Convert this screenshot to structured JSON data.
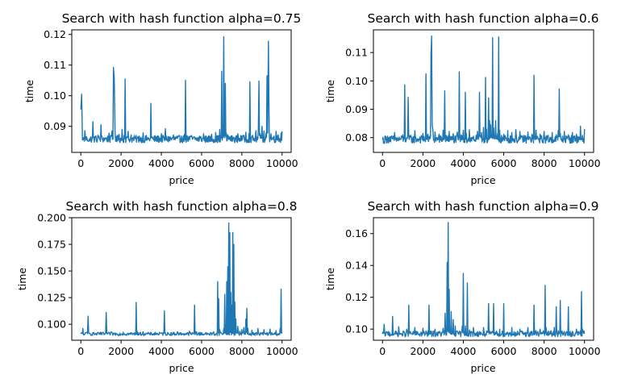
{
  "figure": {
    "background": "#ffffff",
    "series_color": "#1f77b4"
  },
  "chart_data": [
    {
      "type": "line",
      "title": "Search with hash function alpha=0.75",
      "xlabel": "price",
      "ylabel": "time",
      "xlim": [
        -450,
        10450
      ],
      "ylim": [
        0.0815,
        0.1215
      ],
      "xticks": [
        0,
        2000,
        4000,
        6000,
        8000,
        10000
      ],
      "xtick_labels": [
        "0",
        "2000",
        "4000",
        "6000",
        "8000",
        "10000"
      ],
      "yticks": [
        0.09,
        0.1,
        0.11,
        0.12
      ],
      "ytick_labels": [
        "0.09",
        "0.10",
        "0.11",
        "0.12"
      ],
      "grid": false,
      "series": [
        {
          "baseline": 0.0855,
          "noise": 0.0012,
          "x": [
            0,
            40,
            80,
            120,
            200,
            300,
            450,
            600,
            720,
            850,
            1000,
            1200,
            1400,
            1550,
            1620,
            1660,
            1700,
            1760,
            1900,
            2050,
            2150,
            2200,
            2260,
            2350,
            2500,
            2700,
            2900,
            3100,
            3300,
            3480,
            3530,
            3600,
            3800,
            4000,
            4200,
            4400,
            4600,
            4800,
            5000,
            5150,
            5200,
            5260,
            5350,
            5500,
            5700,
            5900,
            6100,
            6300,
            6500,
            6700,
            6900,
            7000,
            7050,
            7100,
            7130,
            7180,
            7230,
            7300,
            7400,
            7600,
            7800,
            7950,
            8050,
            8200,
            8350,
            8400,
            8500,
            8700,
            8820,
            8850,
            8900,
            8950,
            9000,
            9100,
            9200,
            9250,
            9280,
            9320,
            9360,
            9450,
            9600,
            9700,
            9800,
            9900,
            9950,
            10000
          ],
          "y": [
            0.0955,
            0.1005,
            0.0855,
            0.0858,
            0.0886,
            0.0862,
            0.0852,
            0.0915,
            0.0864,
            0.0871,
            0.0905,
            0.0862,
            0.0878,
            0.0885,
            0.1092,
            0.106,
            0.0882,
            0.0866,
            0.0874,
            0.089,
            0.087,
            0.1055,
            0.0862,
            0.0884,
            0.0872,
            0.086,
            0.0868,
            0.0879,
            0.0862,
            0.0975,
            0.0866,
            0.0858,
            0.0868,
            0.0876,
            0.0892,
            0.0866,
            0.0872,
            0.0861,
            0.0868,
            0.0874,
            0.105,
            0.0862,
            0.0864,
            0.087,
            0.0862,
            0.0868,
            0.0876,
            0.0865,
            0.0874,
            0.088,
            0.089,
            0.108,
            0.0885,
            0.1192,
            0.087,
            0.104,
            0.0878,
            0.0872,
            0.0866,
            0.0864,
            0.0876,
            0.087,
            0.087,
            0.0881,
            0.0876,
            0.1045,
            0.0868,
            0.0886,
            0.0892,
            0.1048,
            0.0876,
            0.087,
            0.09,
            0.0885,
            0.0878,
            0.1065,
            0.0878,
            0.1178,
            0.0883,
            0.0876,
            0.0868,
            0.0884,
            0.0872,
            0.086,
            0.0878,
            0.0884
          ]
        }
      ]
    },
    {
      "type": "line",
      "title": "Search with hash function alpha=0.6",
      "xlabel": "price",
      "ylabel": "time",
      "xlim": [
        -450,
        10450
      ],
      "ylim": [
        0.0748,
        0.118
      ],
      "xticks": [
        0,
        2000,
        4000,
        6000,
        8000,
        10000
      ],
      "xtick_labels": [
        "0",
        "2000",
        "4000",
        "6000",
        "8000",
        "10000"
      ],
      "yticks": [
        0.08,
        0.09,
        0.1,
        0.11
      ],
      "ytick_labels": [
        "0.08",
        "0.09",
        "0.10",
        "0.11"
      ],
      "grid": false,
      "series": [
        {
          "baseline": 0.079,
          "noise": 0.0014,
          "x": [
            0,
            100,
            250,
            400,
            600,
            800,
            1000,
            1100,
            1200,
            1270,
            1400,
            1600,
            1850,
            2000,
            2150,
            2250,
            2400,
            2430,
            2460,
            2500,
            2600,
            2800,
            3000,
            3080,
            3150,
            3300,
            3500,
            3700,
            3800,
            3900,
            4000,
            4100,
            4150,
            4300,
            4500,
            4700,
            4800,
            4900,
            5000,
            5100,
            5150,
            5250,
            5300,
            5350,
            5450,
            5500,
            5600,
            5700,
            5750,
            5800,
            6000,
            6200,
            6400,
            6600,
            6800,
            7000,
            7200,
            7400,
            7500,
            7600,
            7800,
            8000,
            8200,
            8400,
            8600,
            8700,
            8750,
            8800,
            9000,
            9200,
            9400,
            9600,
            9800,
            9900,
            10000
          ],
          "y": [
            0.0792,
            0.078,
            0.0805,
            0.0785,
            0.0818,
            0.079,
            0.081,
            0.0986,
            0.08,
            0.0942,
            0.0808,
            0.0825,
            0.0802,
            0.0815,
            0.1025,
            0.0812,
            0.1095,
            0.1158,
            0.0845,
            0.0822,
            0.082,
            0.0812,
            0.0826,
            0.0965,
            0.0808,
            0.0822,
            0.0814,
            0.082,
            0.1032,
            0.081,
            0.0826,
            0.096,
            0.0815,
            0.0828,
            0.0805,
            0.0822,
            0.096,
            0.0818,
            0.0836,
            0.1012,
            0.083,
            0.094,
            0.086,
            0.0845,
            0.1152,
            0.0835,
            0.086,
            0.0815,
            0.1155,
            0.0826,
            0.0812,
            0.0825,
            0.0818,
            0.0828,
            0.0822,
            0.0808,
            0.082,
            0.0812,
            0.102,
            0.0826,
            0.0812,
            0.0822,
            0.0808,
            0.0818,
            0.081,
            0.0826,
            0.0972,
            0.0815,
            0.0822,
            0.081,
            0.0818,
            0.0812,
            0.084,
            0.0808,
            0.083
          ]
        }
      ]
    },
    {
      "type": "line",
      "title": "Search with hash function alpha=0.8",
      "xlabel": "price",
      "ylabel": "time",
      "xlim": [
        -450,
        10450
      ],
      "ylim": [
        0.085,
        0.2
      ],
      "xticks": [
        0,
        2000,
        4000,
        6000,
        8000,
        10000
      ],
      "xtick_labels": [
        "0",
        "2000",
        "4000",
        "6000",
        "8000",
        "10000"
      ],
      "yticks": [
        0.1,
        0.125,
        0.15,
        0.175,
        0.2
      ],
      "ytick_labels": [
        "0.100",
        "0.125",
        "0.150",
        "0.175",
        "0.200"
      ],
      "grid": false,
      "series": [
        {
          "baseline": 0.0905,
          "noise": 0.0015,
          "x": [
            0,
            100,
            200,
            300,
            360,
            420,
            600,
            800,
            1000,
            1200,
            1260,
            1320,
            1500,
            1800,
            2100,
            2400,
            2750,
            2800,
            2850,
            3100,
            3400,
            3700,
            4000,
            4150,
            4200,
            4500,
            4800,
            5100,
            5400,
            5650,
            5700,
            5750,
            6000,
            6300,
            6600,
            6800,
            6850,
            6900,
            6950,
            7100,
            7150,
            7200,
            7250,
            7300,
            7350,
            7400,
            7450,
            7500,
            7550,
            7600,
            7650,
            7700,
            7750,
            7800,
            7900,
            8000,
            8100,
            8200,
            8250,
            8300,
            8500,
            8800,
            9100,
            9400,
            9700,
            9900,
            9950,
            10000
          ],
          "y": [
            0.091,
            0.096,
            0.0905,
            0.0925,
            0.1075,
            0.0915,
            0.092,
            0.0905,
            0.0925,
            0.091,
            0.111,
            0.0915,
            0.093,
            0.091,
            0.0925,
            0.0915,
            0.1205,
            0.0935,
            0.092,
            0.093,
            0.091,
            0.0925,
            0.0915,
            0.1125,
            0.0918,
            0.0922,
            0.093,
            0.0912,
            0.0935,
            0.118,
            0.0928,
            0.093,
            0.0922,
            0.0915,
            0.093,
            0.14,
            0.124,
            0.095,
            0.0925,
            0.096,
            0.128,
            0.099,
            0.14,
            0.154,
            0.195,
            0.186,
            0.13,
            0.118,
            0.186,
            0.175,
            0.121,
            0.105,
            0.092,
            0.098,
            0.0935,
            0.095,
            0.097,
            0.105,
            0.115,
            0.096,
            0.0945,
            0.096,
            0.095,
            0.0955,
            0.094,
            0.096,
            0.133,
            0.0925
          ]
        }
      ]
    },
    {
      "type": "line",
      "title": "Search with hash function alpha=0.9",
      "xlabel": "price",
      "ylabel": "time",
      "xlim": [
        -450,
        10450
      ],
      "ylim": [
        0.093,
        0.17
      ],
      "xticks": [
        0,
        2000,
        4000,
        6000,
        8000,
        10000
      ],
      "xtick_labels": [
        "0",
        "2000",
        "4000",
        "6000",
        "8000",
        "10000"
      ],
      "yticks": [
        0.1,
        0.12,
        0.14,
        0.16
      ],
      "ytick_labels": [
        "0.10",
        "0.12",
        "0.14",
        "0.16"
      ],
      "grid": false,
      "series": [
        {
          "baseline": 0.0965,
          "noise": 0.0018,
          "x": [
            0,
            80,
            150,
            300,
            450,
            500,
            600,
            800,
            1000,
            1200,
            1300,
            1400,
            1600,
            1800,
            2000,
            2200,
            2300,
            2400,
            2600,
            2800,
            3000,
            3100,
            3200,
            3250,
            3300,
            3400,
            3500,
            3600,
            3800,
            3950,
            4000,
            4100,
            4200,
            4300,
            4500,
            4800,
            5000,
            5200,
            5250,
            5400,
            5500,
            5600,
            5800,
            6000,
            6200,
            6400,
            6600,
            6800,
            7000,
            7200,
            7400,
            7500,
            7600,
            7800,
            8000,
            8050,
            8100,
            8300,
            8500,
            8600,
            8700,
            8800,
            9000,
            9200,
            9400,
            9600,
            9800,
            9850,
            9900,
            10000
          ],
          "y": [
            0.097,
            0.103,
            0.096,
            0.0985,
            0.0965,
            0.108,
            0.097,
            0.1015,
            0.096,
            0.1,
            0.115,
            0.0975,
            0.101,
            0.0965,
            0.1005,
            0.0975,
            0.115,
            0.097,
            0.1,
            0.0975,
            0.1005,
            0.11,
            0.142,
            0.167,
            0.125,
            0.111,
            0.106,
            0.102,
            0.0985,
            0.102,
            0.135,
            0.102,
            0.129,
            0.0995,
            0.101,
            0.0985,
            0.101,
            0.098,
            0.116,
            0.0975,
            0.116,
            0.098,
            0.1,
            0.116,
            0.0975,
            0.101,
            0.098,
            0.1,
            0.0975,
            0.101,
            0.0985,
            0.115,
            0.099,
            0.1,
            0.0985,
            0.1275,
            0.101,
            0.0985,
            0.101,
            0.114,
            0.099,
            0.118,
            0.0985,
            0.114,
            0.0985,
            0.1,
            0.099,
            0.1235,
            0.1,
            0.097
          ]
        }
      ]
    }
  ]
}
